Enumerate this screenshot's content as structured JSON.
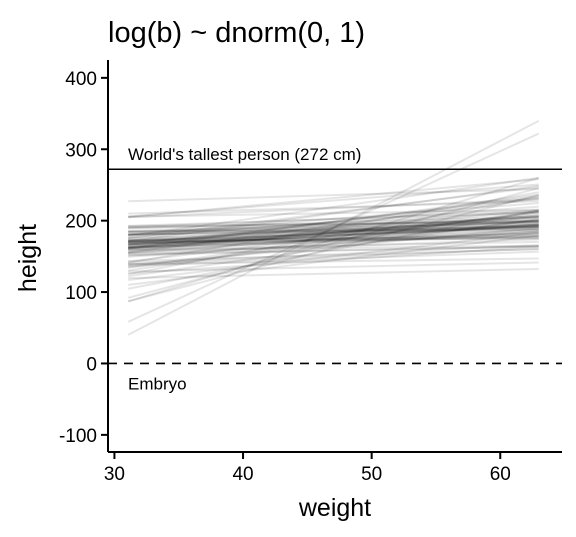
{
  "chart_data": {
    "type": "line",
    "title": "log(b) ~ dnorm(0, 1)",
    "xlabel": "weight",
    "ylabel": "height",
    "xlim": [
      29.5,
      64.8
    ],
    "ylim": [
      -124,
      425
    ],
    "x_ticks": [
      30,
      40,
      50,
      60
    ],
    "y_ticks": [
      -100,
      0,
      100,
      200,
      300,
      400
    ],
    "x_tick_labels": [
      "30",
      "40",
      "50",
      "60"
    ],
    "y_tick_labels": [
      "-100",
      "0",
      "100",
      "200",
      "300",
      "400"
    ],
    "grid": false,
    "line_color": "#000000",
    "line_opacity": 0.1,
    "line_x_range": [
      31.07,
      62.99
    ],
    "n_lines": 100,
    "reference_lines": [
      {
        "y": 272,
        "style": "solid",
        "label": "World's tallest person (272 cm)"
      },
      {
        "y": 0,
        "style": "dashed",
        "label": "Embryo"
      }
    ]
  }
}
